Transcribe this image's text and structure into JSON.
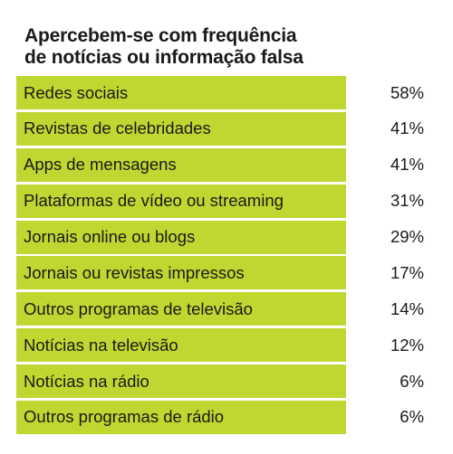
{
  "title_lines": [
    "Apercebem-se com frequência",
    "de notícias ou informação falsa"
  ],
  "chart_data": {
    "type": "table",
    "title": "Apercebem-se com frequência de notícias ou informação falsa",
    "categories": [
      "Redes sociais",
      "Revistas de celebridades",
      "Apps de mensagens",
      "Plataformas de vídeo ou streaming",
      "Jornais online ou blogs",
      "Jornais ou revistas impressos",
      "Outros programas de televisão",
      "Notícias na televisão",
      "Notícias na rádio",
      "Outros programas de rádio"
    ],
    "values": [
      58,
      41,
      41,
      31,
      29,
      17,
      14,
      12,
      6,
      6
    ],
    "value_labels": [
      "58%",
      "41%",
      "41%",
      "31%",
      "29%",
      "17%",
      "14%",
      "12%",
      "6%",
      "6%"
    ],
    "unit": "%"
  },
  "colors": {
    "row_fill": "#bfd730",
    "text": "#1a1a1a",
    "background": "#ffffff"
  }
}
